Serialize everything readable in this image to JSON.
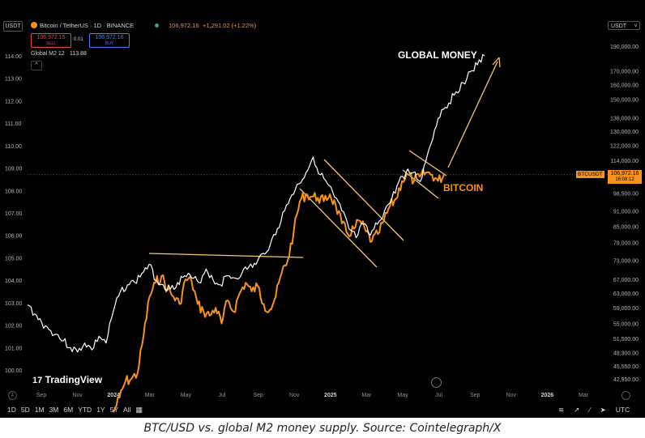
{
  "header": {
    "currency_button": "USDT",
    "currency_right": "USDT",
    "symbol_title": "Bitcoin / TetherUS · 1D · BINANCE",
    "last_price": "106,972.16",
    "change": "+1,291.02 (+1.22%)",
    "sell_price": "106,972.15",
    "sell_label": "SELL",
    "spread": "0.01",
    "buy_price": "106,972.16",
    "buy_label": "BUY",
    "indicator_name": "Global M2 12",
    "indicator_value": "113.88",
    "collapse_icon": "chevron-up-icon"
  },
  "annotations": {
    "global_money": "GLOBAL MONEY",
    "bitcoin": "BITCOIN"
  },
  "price_tag": {
    "symbol": "BTCUSDT",
    "price": "106,972.16",
    "countdown": "16:08:12"
  },
  "watermark": "TradingView",
  "toolbar": {
    "ranges": [
      "1D",
      "5D",
      "1M",
      "3M",
      "6M",
      "YTD",
      "1Y",
      "5Y",
      "All"
    ],
    "calendar_icon": "calendar-icon",
    "timezone": "UTC"
  },
  "caption": "BTC/USD vs. global M2 money supply. Source: Cointelegraph/X",
  "colors": {
    "background": "#000000",
    "btc_line": "#f7931a",
    "m2_line": "#ffffff",
    "trendline": "#f5c76a",
    "sell": "#e0454a",
    "buy": "#4f7cf2",
    "price_tag": "#f7931a"
  },
  "chart_data": {
    "type": "line",
    "x_ticks": [
      "Sep",
      "Nov",
      "2024",
      "Mar",
      "May",
      "Jul",
      "Sep",
      "Nov",
      "2025",
      "Mar",
      "May",
      "Jul",
      "Sep",
      "Nov",
      "2026",
      "Mar"
    ],
    "left_axis": {
      "label": "",
      "ticks": [
        "114.00",
        "113.00",
        "112.00",
        "111.00",
        "110.00",
        "109.00",
        "108.00",
        "107.00",
        "106.00",
        "105.00",
        "104.00",
        "103.00",
        "102.00",
        "101.00",
        "100.00"
      ],
      "ylim": [
        99.5,
        114.5
      ]
    },
    "right_axis": {
      "label": "",
      "scale": "log",
      "ticks": [
        "190,000.00",
        "170,000.00",
        "160,000.00",
        "150,000.00",
        "138,000.00",
        "130,000.00",
        "122,000.00",
        "114,000.00",
        "98,500.00",
        "91,000.00",
        "85,000.00",
        "79,000.00",
        "73,000.00",
        "67,000.00",
        "63,000.00",
        "59,000.00",
        "55,000.00",
        "51,500.00",
        "48,300.00",
        "45,550.00",
        "42,950.00"
      ]
    },
    "series": [
      {
        "name": "Global M2 12",
        "axis": "left",
        "values": [
          102.9,
          102.5,
          102.1,
          101.8,
          101.6,
          101.3,
          101.0,
          100.8,
          101.2,
          100.9,
          101.5,
          101.2,
          102.6,
          103.5,
          103.8,
          103.9,
          104.3,
          104.7,
          104.0,
          103.8,
          103.6,
          103.9,
          104.2,
          104.1,
          103.9,
          104.5,
          104.0,
          103.8,
          104.2,
          104.1,
          104.3,
          104.6,
          104.7,
          105.2,
          105.6,
          106.3,
          107.1,
          107.8,
          108.3,
          108.8,
          109.5,
          108.7,
          108.3,
          107.7,
          107.1,
          106.3,
          105.9,
          106.5,
          106.0,
          106.5,
          107.1,
          107.6,
          108.4,
          108.8,
          108.8,
          108.4,
          109.6,
          110.7,
          111.6,
          111.9,
          112.4,
          112.8,
          113.3,
          113.6,
          114.0
        ]
      },
      {
        "name": "BTCUSDT",
        "axis": "right",
        "values": [
          37000,
          39500,
          42500,
          43000,
          44000,
          52000,
          62000,
          66000,
          68000,
          64000,
          62000,
          60000,
          67000,
          66500,
          60000,
          58000,
          57000,
          59000,
          55000,
          61000,
          58000,
          63000,
          66000,
          63500,
          65000,
          60000,
          58500,
          62000,
          69000,
          73000,
          83000,
          95000,
          98000,
          97000,
          96500,
          95000,
          98000,
          93000,
          86000,
          82000,
          84000,
          87000,
          83000,
          79500,
          82000,
          87000,
          93000,
          96000,
          104000,
          107000,
          104000,
          106000,
          108000,
          107000,
          104000,
          107000
        ]
      }
    ],
    "annotations": [
      "GLOBAL MONEY",
      "BITCOIN"
    ],
    "last_value_label": "106,972.16",
    "grid": false,
    "legend": "top-left"
  }
}
